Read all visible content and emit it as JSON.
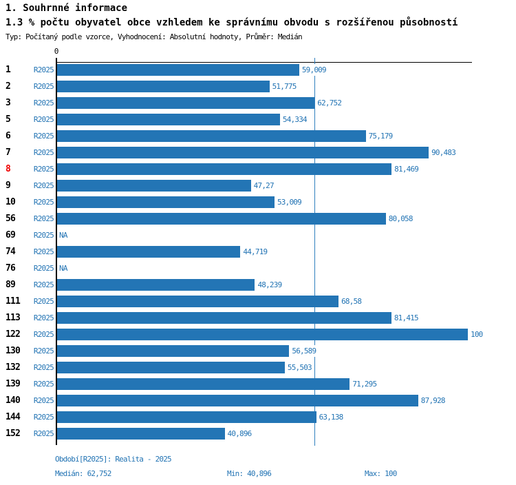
{
  "header": {
    "title": "1. Souhrnné informace",
    "subtitle": "1.3 % počtu obyvatel obce vzhledem ke správnímu obvodu s rozšířenou působností",
    "meta": "Typ: Počítaný podle vzorce, Vyhodnocení: Absolutní hodnoty, Průměr: Medián"
  },
  "chart_data": {
    "type": "bar",
    "orientation": "horizontal",
    "title": "1.3 % počtu obyvatel obce vzhledem ke správnímu obvodu s rozšířenou působností",
    "axis": {
      "origin_label": "0",
      "xlim": [
        0,
        101
      ],
      "grid": false
    },
    "median_value": 62.752,
    "na_label": "NA",
    "colors": {
      "bar": "#2375b5",
      "value_text": "#2374b4",
      "series_text": "#2374b4",
      "median_line": "#3080be",
      "axis": "#000000",
      "row_id": "#000000",
      "row_id_highlight": "#ee0000"
    },
    "series_name": "R2025",
    "rows": [
      {
        "id": "1",
        "series": "R2025",
        "value": 59.009,
        "label": "59,009",
        "highlight": false
      },
      {
        "id": "2",
        "series": "R2025",
        "value": 51.775,
        "label": "51,775",
        "highlight": false
      },
      {
        "id": "3",
        "series": "R2025",
        "value": 62.752,
        "label": "62,752",
        "highlight": false
      },
      {
        "id": "5",
        "series": "R2025",
        "value": 54.334,
        "label": "54,334",
        "highlight": false
      },
      {
        "id": "6",
        "series": "R2025",
        "value": 75.179,
        "label": "75,179",
        "highlight": false
      },
      {
        "id": "7",
        "series": "R2025",
        "value": 90.483,
        "label": "90,483",
        "highlight": false
      },
      {
        "id": "8",
        "series": "R2025",
        "value": 81.469,
        "label": "81,469",
        "highlight": true
      },
      {
        "id": "9",
        "series": "R2025",
        "value": 47.27,
        "label": "47,27",
        "highlight": false
      },
      {
        "id": "10",
        "series": "R2025",
        "value": 53.009,
        "label": "53,009",
        "highlight": false
      },
      {
        "id": "56",
        "series": "R2025",
        "value": 80.058,
        "label": "80,058",
        "highlight": false
      },
      {
        "id": "69",
        "series": "R2025",
        "value": null,
        "label": "NA",
        "highlight": false
      },
      {
        "id": "74",
        "series": "R2025",
        "value": 44.719,
        "label": "44,719",
        "highlight": false
      },
      {
        "id": "76",
        "series": "R2025",
        "value": null,
        "label": "NA",
        "highlight": false
      },
      {
        "id": "89",
        "series": "R2025",
        "value": 48.239,
        "label": "48,239",
        "highlight": false
      },
      {
        "id": "111",
        "series": "R2025",
        "value": 68.58,
        "label": "68,58",
        "highlight": false
      },
      {
        "id": "113",
        "series": "R2025",
        "value": 81.415,
        "label": "81,415",
        "highlight": false
      },
      {
        "id": "122",
        "series": "R2025",
        "value": 100,
        "label": "100",
        "highlight": false
      },
      {
        "id": "130",
        "series": "R2025",
        "value": 56.589,
        "label": "56,589",
        "highlight": false
      },
      {
        "id": "132",
        "series": "R2025",
        "value": 55.503,
        "label": "55,503",
        "highlight": false
      },
      {
        "id": "139",
        "series": "R2025",
        "value": 71.295,
        "label": "71,295",
        "highlight": false
      },
      {
        "id": "140",
        "series": "R2025",
        "value": 87.928,
        "label": "87,928",
        "highlight": false
      },
      {
        "id": "144",
        "series": "R2025",
        "value": 63.138,
        "label": "63,138",
        "highlight": false
      },
      {
        "id": "152",
        "series": "R2025",
        "value": 40.896,
        "label": "40,896",
        "highlight": false
      }
    ]
  },
  "footer": {
    "period": "Období[R2025]: Realita - 2025",
    "median": "Medián: 62,752",
    "min": "Min: 40,896",
    "max": "Max: 100"
  }
}
